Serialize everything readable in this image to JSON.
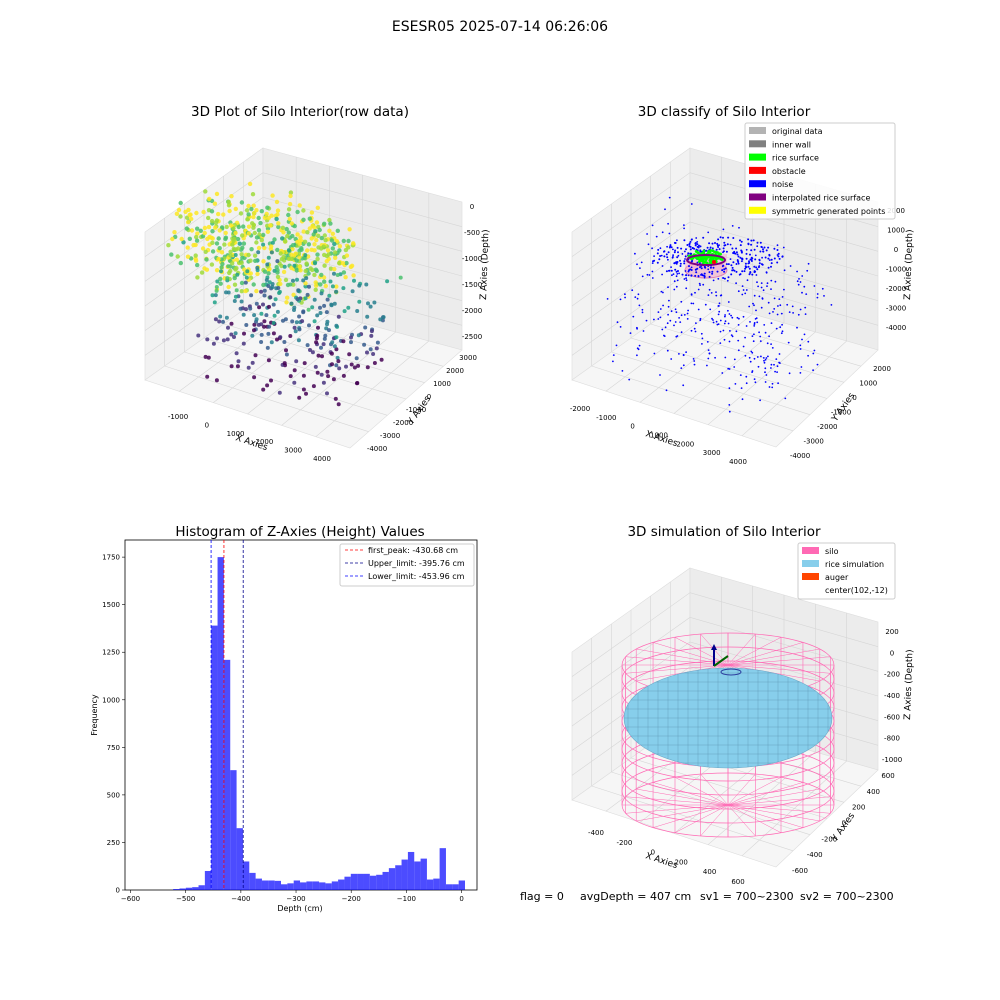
{
  "figure": {
    "suptitle": "ESESR05 2025-07-14 06:26:06",
    "footer": {
      "flag": "flag = 0",
      "avg": "avgDepth = 407 cm",
      "sv1": "sv1 = 700~2300",
      "sv2": "sv2 = 700~2300"
    }
  },
  "chart_data": [
    {
      "type": "scatter",
      "projection": "3d",
      "title": "3D Plot of Silo Interior(row data)",
      "xlabel": "X Axies",
      "ylabel": "Y Axies",
      "zlabel": "Z Axies (Depth)",
      "xticks": [
        "-1000",
        "0",
        "1000",
        "2000",
        "3000",
        "4000"
      ],
      "yticks": [
        "-4000",
        "-3000",
        "-2000",
        "-1000",
        "0",
        "1000",
        "2000",
        "3000"
      ],
      "zticks": [
        "0",
        "-500",
        "-1000",
        "-1500",
        "-2000",
        "-2500"
      ],
      "colormap": "viridis (by depth)",
      "grid": true
    },
    {
      "type": "scatter",
      "projection": "3d",
      "title": "3D classify of Silo Interior",
      "xlabel": "X Axies",
      "ylabel": "Y Axies",
      "zlabel": "Z Axies (Depth)",
      "xticks": [
        "-2000",
        "-1000",
        "0",
        "1000",
        "2000",
        "3000",
        "4000"
      ],
      "yticks": [
        "-4000",
        "-3000",
        "-2000",
        "-1000",
        "0",
        "1000",
        "2000"
      ],
      "zticks": [
        "2000",
        "1000",
        "0",
        "-1000",
        "-2000",
        "-3000",
        "-4000"
      ],
      "legend_position": "top-right",
      "legend": [
        {
          "label": "original data",
          "color": "#b3b3b3"
        },
        {
          "label": "inner wall",
          "color": "#808080"
        },
        {
          "label": "rice surface",
          "color": "#00ff00"
        },
        {
          "label": "obstacle",
          "color": "#ff0000"
        },
        {
          "label": "noise",
          "color": "#0000ff"
        },
        {
          "label": "interpolated rice surface",
          "color": "#800080"
        },
        {
          "label": "symmetric generated points",
          "color": "#ffff00"
        }
      ],
      "grid": true
    },
    {
      "type": "bar",
      "title": "Histogram of Z-Axies (Height) Values",
      "xlabel": "Depth (cm)",
      "ylabel": "Frequency",
      "xlim": [
        -610,
        28
      ],
      "ylim": [
        0,
        1840
      ],
      "xticks": [
        -600,
        -500,
        -400,
        -300,
        -200,
        -100,
        0
      ],
      "yticks": [
        0,
        250,
        500,
        750,
        1000,
        1250,
        1500,
        1750
      ],
      "bar_color": "#0000ff",
      "bin_width": 11.5,
      "bins": [
        {
          "x": -517,
          "v": 5
        },
        {
          "x": -505.5,
          "v": 8
        },
        {
          "x": -494,
          "v": 12
        },
        {
          "x": -482.5,
          "v": 15
        },
        {
          "x": -471,
          "v": 25
        },
        {
          "x": -459.5,
          "v": 100
        },
        {
          "x": -448,
          "v": 1390
        },
        {
          "x": -436.5,
          "v": 1750
        },
        {
          "x": -425,
          "v": 1210
        },
        {
          "x": -413.5,
          "v": 630
        },
        {
          "x": -402,
          "v": 325
        },
        {
          "x": -390.5,
          "v": 150
        },
        {
          "x": -379,
          "v": 90
        },
        {
          "x": -367.5,
          "v": 60
        },
        {
          "x": -356,
          "v": 50
        },
        {
          "x": -344.5,
          "v": 50
        },
        {
          "x": -333,
          "v": 48
        },
        {
          "x": -321.5,
          "v": 30
        },
        {
          "x": -310,
          "v": 35
        },
        {
          "x": -298.5,
          "v": 50
        },
        {
          "x": -287,
          "v": 40
        },
        {
          "x": -275.5,
          "v": 45
        },
        {
          "x": -264,
          "v": 45
        },
        {
          "x": -252.5,
          "v": 40
        },
        {
          "x": -241,
          "v": 35
        },
        {
          "x": -229.5,
          "v": 45
        },
        {
          "x": -218,
          "v": 55
        },
        {
          "x": -206.5,
          "v": 70
        },
        {
          "x": -195,
          "v": 85
        },
        {
          "x": -183.5,
          "v": 85
        },
        {
          "x": -172,
          "v": 85
        },
        {
          "x": -160.5,
          "v": 75
        },
        {
          "x": -149,
          "v": 80
        },
        {
          "x": -137.5,
          "v": 95
        },
        {
          "x": -126,
          "v": 115
        },
        {
          "x": -114.5,
          "v": 130
        },
        {
          "x": -103,
          "v": 160
        },
        {
          "x": -91.5,
          "v": 200
        },
        {
          "x": -80,
          "v": 150
        },
        {
          "x": -68.5,
          "v": 165
        },
        {
          "x": -57,
          "v": 55
        },
        {
          "x": -45.5,
          "v": 60
        },
        {
          "x": -34,
          "v": 220
        },
        {
          "x": -22.5,
          "v": 30
        },
        {
          "x": -11,
          "v": 30
        },
        {
          "x": 0.5,
          "v": 50
        }
      ],
      "vlines": [
        {
          "label": "first_peak: -430.68 cm",
          "x": -430.68,
          "color": "#ff0000"
        },
        {
          "label": "Upper_limit: -395.76 cm",
          "x": -395.76,
          "color": "#00008b"
        },
        {
          "label": "Lower_limit: -453.96 cm",
          "x": -453.96,
          "color": "#0000ff"
        }
      ],
      "legend_position": "top-right"
    },
    {
      "type": "surface",
      "projection": "3d",
      "title": "3D simulation of Silo Interior",
      "xlabel": "X Axies",
      "ylabel": "Y Axies",
      "zlabel": "Z Axies (Depth)",
      "xticks": [
        "-400",
        "-200",
        "0",
        "200",
        "400",
        "600"
      ],
      "yticks": [
        "-600",
        "-400",
        "-200",
        "0",
        "200",
        "400",
        "600"
      ],
      "zticks": [
        "200",
        "0",
        "-200",
        "-400",
        "-600",
        "-800",
        "-1000"
      ],
      "legend_position": "top-right",
      "legend": [
        {
          "label": "silo",
          "color": "#ff69b4"
        },
        {
          "label": "rice simulation",
          "color": "#87ceeb"
        },
        {
          "label": "auger",
          "color": "#ff4500"
        },
        {
          "label": "center(102,-12)",
          "color": ""
        }
      ],
      "colors": {
        "silo": "#ff69b4",
        "rice": "#87ceeb",
        "auger_arrow": "#00008b",
        "auger_arm": "#006400"
      }
    }
  ]
}
